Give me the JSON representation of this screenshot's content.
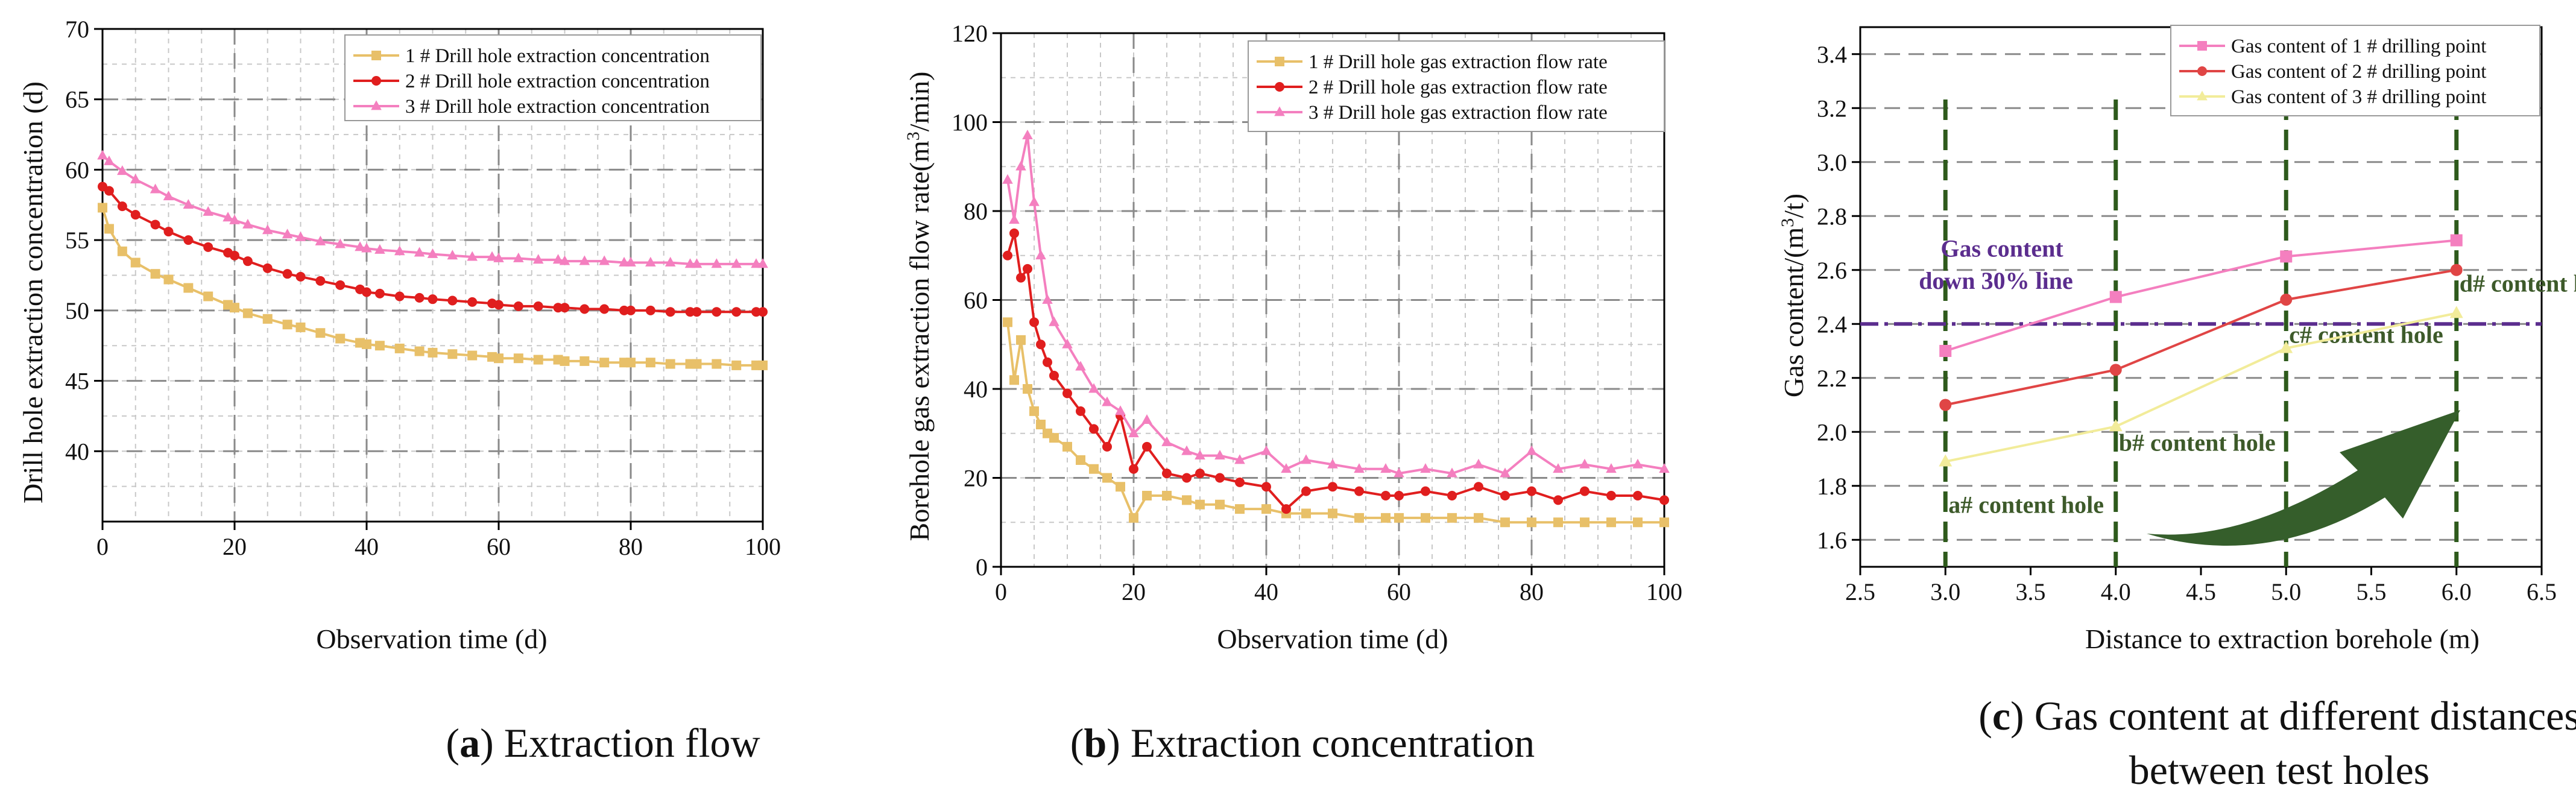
{
  "chart_data": [
    {
      "type": "line",
      "caption": {
        "label": "a",
        "text": ") Extraction flow"
      },
      "xlabel": "Observation time (d)",
      "ylabel": "Drill hole extraction concentration  (d)",
      "xlim": [
        0,
        100
      ],
      "ylim": [
        35,
        70
      ],
      "xticks": [
        "0",
        "20",
        "40",
        "60",
        "80",
        "100"
      ],
      "yticks": [
        "40",
        "45",
        "50",
        "55",
        "60",
        "65",
        "70"
      ],
      "series": [
        {
          "name": "1 # Drill hole extraction concentration",
          "color": "#e8c069",
          "marker": "square",
          "x": [
            0,
            1,
            3,
            5,
            8,
            10,
            13,
            16,
            19,
            20,
            22,
            25,
            28,
            30,
            33,
            36,
            39,
            40,
            42,
            45,
            48,
            50,
            53,
            56,
            59,
            60,
            63,
            66,
            69,
            70,
            73,
            76,
            79,
            80,
            83,
            86,
            89,
            90,
            93,
            96,
            99,
            100
          ],
          "y": [
            57.3,
            55.8,
            54.2,
            53.4,
            52.6,
            52.2,
            51.6,
            51.0,
            50.4,
            50.2,
            49.8,
            49.4,
            49.0,
            48.8,
            48.4,
            48.0,
            47.7,
            47.6,
            47.5,
            47.3,
            47.1,
            47.0,
            46.9,
            46.8,
            46.7,
            46.6,
            46.6,
            46.5,
            46.5,
            46.4,
            46.4,
            46.3,
            46.3,
            46.3,
            46.3,
            46.2,
            46.2,
            46.2,
            46.2,
            46.1,
            46.1,
            46.1
          ]
        },
        {
          "name": "2 # Drill hole extraction concentration",
          "color": "#e01e1e",
          "marker": "circle",
          "x": [
            0,
            1,
            3,
            5,
            8,
            10,
            13,
            16,
            19,
            20,
            22,
            25,
            28,
            30,
            33,
            36,
            39,
            40,
            42,
            45,
            48,
            50,
            53,
            56,
            59,
            60,
            63,
            66,
            69,
            70,
            73,
            76,
            79,
            80,
            83,
            86,
            89,
            90,
            93,
            96,
            99,
            100
          ],
          "y": [
            58.8,
            58.5,
            57.4,
            56.8,
            56.1,
            55.6,
            55.0,
            54.5,
            54.1,
            53.9,
            53.5,
            53.0,
            52.6,
            52.4,
            52.1,
            51.8,
            51.5,
            51.3,
            51.2,
            51.0,
            50.9,
            50.8,
            50.7,
            50.6,
            50.5,
            50.4,
            50.3,
            50.3,
            50.2,
            50.2,
            50.1,
            50.1,
            50.0,
            50.0,
            50.0,
            49.9,
            49.9,
            49.9,
            49.9,
            49.9,
            49.9,
            49.9
          ]
        },
        {
          "name": "3 # Drill hole extraction concentration",
          "color": "#f47fbf",
          "marker": "triangle",
          "x": [
            0,
            1,
            3,
            5,
            8,
            10,
            13,
            16,
            19,
            20,
            22,
            25,
            28,
            30,
            33,
            36,
            39,
            40,
            42,
            45,
            48,
            50,
            53,
            56,
            59,
            60,
            63,
            66,
            69,
            70,
            73,
            76,
            79,
            80,
            83,
            86,
            89,
            90,
            93,
            96,
            99,
            100
          ],
          "y": [
            61.0,
            60.6,
            59.9,
            59.3,
            58.6,
            58.1,
            57.5,
            57.0,
            56.6,
            56.4,
            56.1,
            55.7,
            55.4,
            55.2,
            54.9,
            54.7,
            54.5,
            54.4,
            54.3,
            54.2,
            54.1,
            54.0,
            53.9,
            53.8,
            53.8,
            53.7,
            53.7,
            53.6,
            53.6,
            53.5,
            53.5,
            53.5,
            53.4,
            53.4,
            53.4,
            53.4,
            53.3,
            53.3,
            53.3,
            53.3,
            53.3,
            53.3
          ]
        }
      ]
    },
    {
      "type": "line",
      "caption": {
        "label": "b",
        "text": ") Extraction concentration"
      },
      "xlabel": "Observation time (d)",
      "ylabel": "Borehole gas extraction flow rate(m³/min)",
      "xlim": [
        0,
        100
      ],
      "ylim": [
        0,
        120
      ],
      "xticks": [
        "0",
        "20",
        "40",
        "60",
        "80",
        "100"
      ],
      "yticks": [
        "0",
        "20",
        "40",
        "60",
        "80",
        "100",
        "120"
      ],
      "series": [
        {
          "name": "1 # Drill hole gas extraction flow rate",
          "color": "#e8c069",
          "marker": "square",
          "x": [
            1,
            2,
            3,
            4,
            5,
            6,
            7,
            8,
            10,
            12,
            14,
            16,
            18,
            20,
            22,
            25,
            28,
            30,
            33,
            36,
            40,
            43,
            46,
            50,
            54,
            58,
            60,
            64,
            68,
            72,
            76,
            80,
            84,
            88,
            92,
            96,
            100
          ],
          "y": [
            55,
            42,
            51,
            40,
            35,
            32,
            30,
            29,
            27,
            24,
            22,
            20,
            18,
            11,
            16,
            16,
            15,
            14,
            14,
            13,
            13,
            12,
            12,
            12,
            11,
            11,
            11,
            11,
            11,
            11,
            10,
            10,
            10,
            10,
            10,
            10,
            10
          ]
        },
        {
          "name": "2 # Drill hole gas extraction flow rate",
          "color": "#e01e1e",
          "marker": "circle",
          "x": [
            1,
            2,
            3,
            4,
            5,
            6,
            7,
            8,
            10,
            12,
            14,
            16,
            18,
            20,
            22,
            25,
            28,
            30,
            33,
            36,
            40,
            43,
            46,
            50,
            54,
            58,
            60,
            64,
            68,
            72,
            76,
            80,
            84,
            88,
            92,
            96,
            100
          ],
          "y": [
            70,
            75,
            65,
            67,
            55,
            50,
            46,
            43,
            39,
            35,
            31,
            27,
            34,
            22,
            27,
            21,
            20,
            21,
            20,
            19,
            18,
            13,
            17,
            18,
            17,
            16,
            16,
            17,
            16,
            18,
            16,
            17,
            15,
            17,
            16,
            16,
            15
          ]
        },
        {
          "name": "3 # Drill hole gas extraction flow rate",
          "color": "#f47fbf",
          "marker": "triangle",
          "x": [
            1,
            2,
            3,
            4,
            5,
            6,
            7,
            8,
            10,
            12,
            14,
            16,
            18,
            20,
            22,
            25,
            28,
            30,
            33,
            36,
            40,
            43,
            46,
            50,
            54,
            58,
            60,
            64,
            68,
            72,
            76,
            80,
            84,
            88,
            92,
            96,
            100
          ],
          "y": [
            87,
            78,
            90,
            97,
            82,
            70,
            60,
            55,
            50,
            45,
            40,
            37,
            35,
            30,
            33,
            28,
            26,
            25,
            25,
            24,
            26,
            22,
            24,
            23,
            22,
            22,
            21,
            22,
            21,
            23,
            21,
            26,
            22,
            23,
            22,
            23,
            22
          ]
        }
      ]
    },
    {
      "type": "line",
      "caption": {
        "label": "c",
        "text": ") Gas content at different distances",
        "text2": "between test holes"
      },
      "xlabel": "Distance to extraction borehole (m)",
      "ylabel": "Gas content/(m³/t)",
      "xlim": [
        2.5,
        6.5
      ],
      "ylim": [
        1.5,
        3.5
      ],
      "xticks": [
        "2.5",
        "3.0",
        "3.5",
        "4.0",
        "4.5",
        "5.0",
        "5.5",
        "6.0",
        "6.5"
      ],
      "yticks": [
        "1.6",
        "1.8",
        "2.0",
        "2.2",
        "2.4",
        "2.6",
        "2.8",
        "3.0",
        "3.2",
        "3.4"
      ],
      "reference_line": {
        "y": 2.4,
        "color": "#5b2d8e",
        "label": "Gas content",
        "label2": "down 30% line"
      },
      "hole_lines": [
        3.0,
        4.0,
        5.0,
        6.0
      ],
      "hole_labels": [
        {
          "x": 3.0,
          "y": 1.7,
          "text": "a# content hole"
        },
        {
          "x": 4.0,
          "y": 1.93,
          "text": "b# content hole"
        },
        {
          "x": 5.0,
          "y": 2.33,
          "text": "c# content hole"
        },
        {
          "x": 6.0,
          "y": 2.52,
          "text": "d# content hole"
        }
      ],
      "label_color": "#3d5a2a",
      "series": [
        {
          "name": "Gas content of 1 # drilling point",
          "color": "#f47fbf",
          "marker": "square",
          "x": [
            3.0,
            4.0,
            5.0,
            6.0
          ],
          "y": [
            2.3,
            2.5,
            2.65,
            2.71
          ]
        },
        {
          "name": "Gas content of 2 # drilling point",
          "color": "#e04545",
          "marker": "circle",
          "x": [
            3.0,
            4.0,
            5.0,
            6.0
          ],
          "y": [
            2.1,
            2.23,
            2.49,
            2.6
          ]
        },
        {
          "name": "Gas content of 3 # drilling point",
          "color": "#f2ec9a",
          "marker": "triangle",
          "x": [
            3.0,
            4.0,
            5.0,
            6.0
          ],
          "y": [
            1.89,
            2.02,
            2.31,
            2.44
          ]
        }
      ]
    }
  ]
}
